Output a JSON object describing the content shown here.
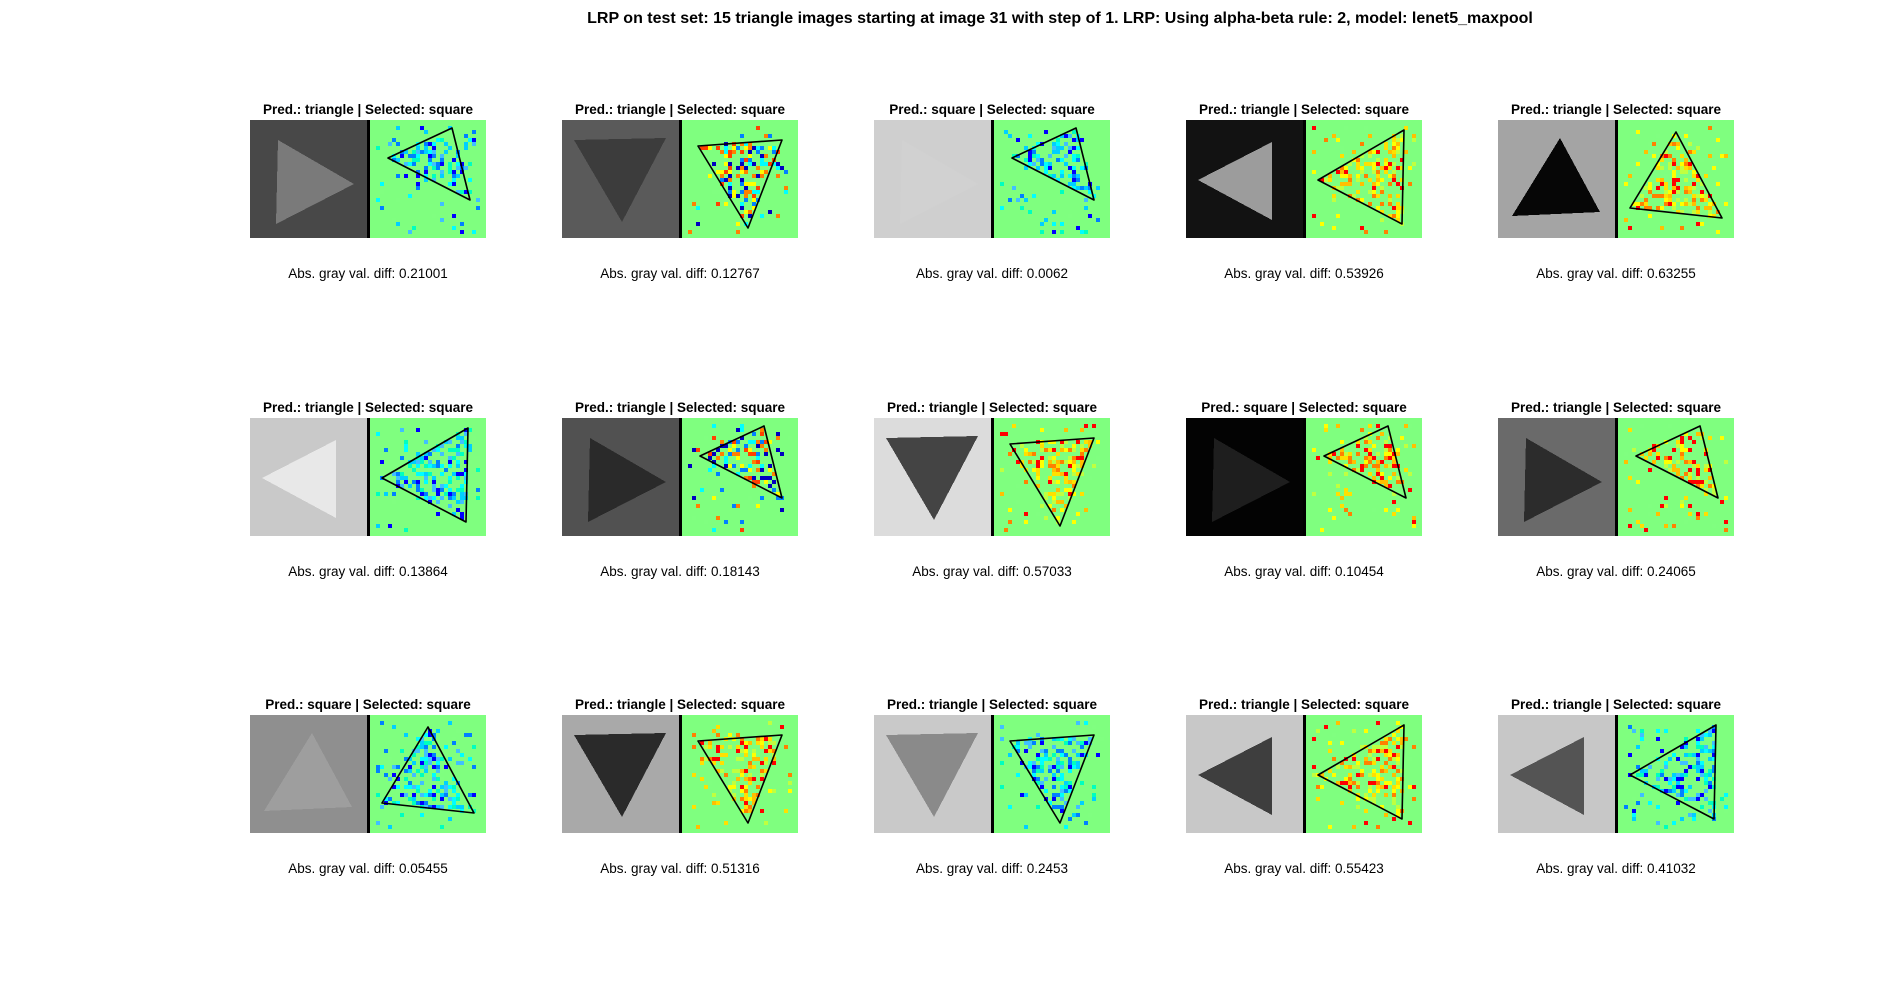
{
  "title": "LRP on test set: 15 triangle images starting at image 31 with step of 1. LRP: Using alpha-beta rule: 2, model: lenet5_maxpool",
  "heatmap_background": "#7fff7f",
  "panels": [
    {
      "pred": "Pred.: triangle | Selected: square",
      "diff": "Abs. gray val. diff: 0.21001",
      "bg": "#484848",
      "fg": "#7a7a7a",
      "dir": "right",
      "heat": "blue"
    },
    {
      "pred": "Pred.: triangle | Selected: square",
      "diff": "Abs. gray val. diff: 0.12767",
      "bg": "#5a5a5a",
      "fg": "#3c3c3c",
      "dir": "down",
      "heat": "mixed"
    },
    {
      "pred": "Pred.: square | Selected: square",
      "diff": "Abs. gray val. diff: 0.0062",
      "bg": "#cfcfcf",
      "fg": "#d1d1d1",
      "dir": "right",
      "heat": "blue"
    },
    {
      "pred": "Pred.: triangle | Selected: square",
      "diff": "Abs. gray val. diff: 0.53926",
      "bg": "#121212",
      "fg": "#9c9c9c",
      "dir": "left",
      "heat": "warm"
    },
    {
      "pred": "Pred.: triangle | Selected: square",
      "diff": "Abs. gray val. diff: 0.63255",
      "bg": "#a4a4a4",
      "fg": "#060606",
      "dir": "up",
      "heat": "warm"
    },
    {
      "pred": "Pred.: triangle | Selected: square",
      "diff": "Abs. gray val. diff: 0.13864",
      "bg": "#c9c9c9",
      "fg": "#e8e8e8",
      "dir": "left",
      "heat": "blue"
    },
    {
      "pred": "Pred.: triangle | Selected: square",
      "diff": "Abs. gray val. diff: 0.18143",
      "bg": "#515151",
      "fg": "#2a2a2a",
      "dir": "right",
      "heat": "mixed"
    },
    {
      "pred": "Pred.: triangle | Selected: square",
      "diff": "Abs. gray val. diff: 0.57033",
      "bg": "#dcdcdc",
      "fg": "#444444",
      "dir": "down",
      "heat": "warm"
    },
    {
      "pred": "Pred.: square | Selected: square",
      "diff": "Abs. gray val. diff: 0.10454",
      "bg": "#030303",
      "fg": "#1e1e1e",
      "dir": "right",
      "heat": "warm"
    },
    {
      "pred": "Pred.: triangle | Selected: square",
      "diff": "Abs. gray val. diff: 0.24065",
      "bg": "#6a6a6a",
      "fg": "#2c2c2c",
      "dir": "right",
      "heat": "warm"
    },
    {
      "pred": "Pred.: square | Selected: square",
      "diff": "Abs. gray val. diff: 0.05455",
      "bg": "#8f8f8f",
      "fg": "#9e9e9e",
      "dir": "up",
      "heat": "blue"
    },
    {
      "pred": "Pred.: triangle | Selected: square",
      "diff": "Abs. gray val. diff: 0.51316",
      "bg": "#a9a9a9",
      "fg": "#2a2a2a",
      "dir": "down",
      "heat": "warm"
    },
    {
      "pred": "Pred.: triangle | Selected: square",
      "diff": "Abs. gray val. diff: 0.2453",
      "bg": "#c9c9c9",
      "fg": "#8a8a8a",
      "dir": "down",
      "heat": "blue"
    },
    {
      "pred": "Pred.: triangle | Selected: square",
      "diff": "Abs. gray val. diff: 0.55423",
      "bg": "#c8c8c8",
      "fg": "#3e3e3e",
      "dir": "left",
      "heat": "warm"
    },
    {
      "pred": "Pred.: triangle | Selected: square",
      "diff": "Abs. gray val. diff: 0.41032",
      "bg": "#c7c7c7",
      "fg": "#545454",
      "dir": "left",
      "heat": "blue"
    }
  ]
}
